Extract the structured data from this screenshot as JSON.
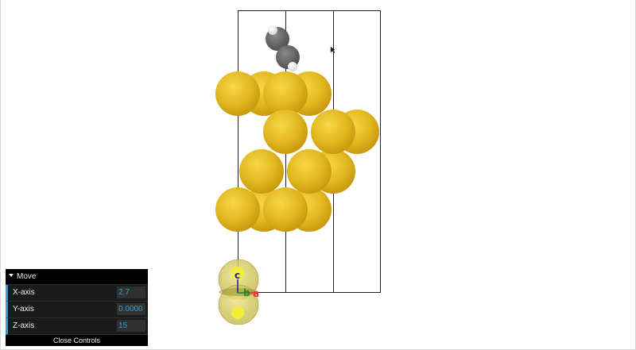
{
  "controls": {
    "folder_title": "Move",
    "x_axis": {
      "label": "X-axis",
      "value": "2.7"
    },
    "y_axis": {
      "label": "Y-axis",
      "value": "0.0000"
    },
    "z_axis": {
      "label": "Z-axis",
      "value": "15"
    },
    "close_label": "Close Controls"
  },
  "axes": {
    "c_label": "c",
    "b_label": "b",
    "a_label": "a",
    "c_color": "#1a237e",
    "b_color": "#2e7d32",
    "a_color": "#e53935"
  },
  "colors": {
    "gold_atom": "#e3b81f",
    "carbon_atom": "#6b6b6b",
    "hydrogen_atom": "#ffffff",
    "gui_accent": "#2fa1d6"
  }
}
